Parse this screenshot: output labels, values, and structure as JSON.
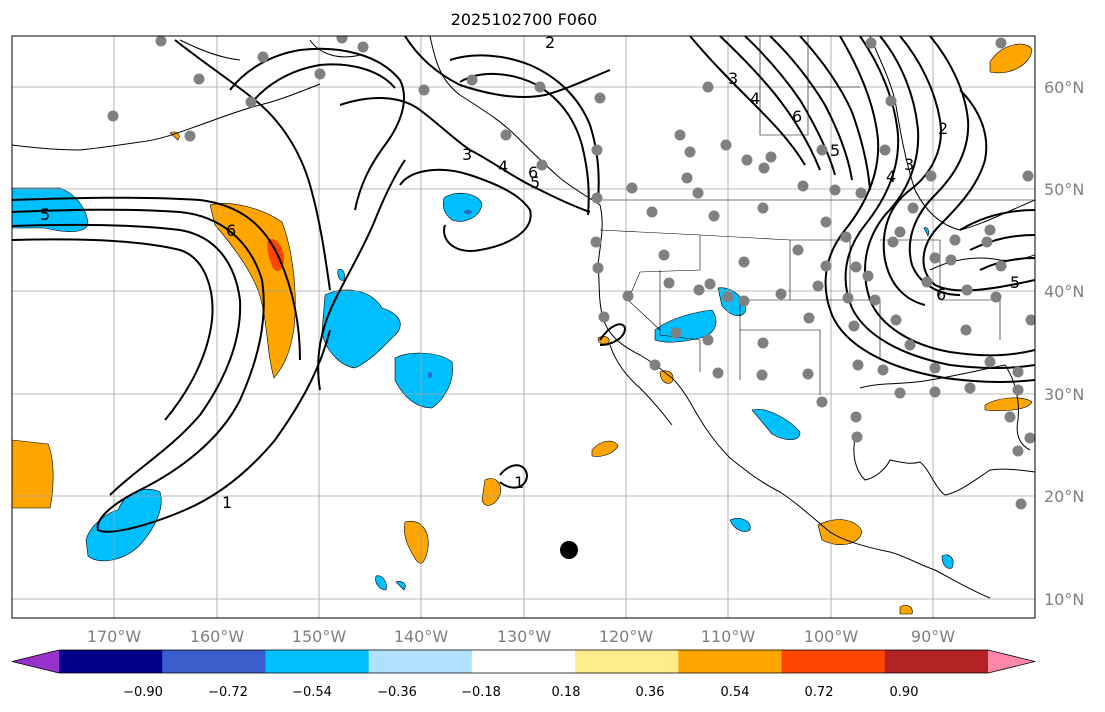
{
  "title": "2025102700 F060",
  "map": {
    "lon_range": [
      -180,
      -80
    ],
    "lat_range": [
      8,
      65
    ],
    "lat_labels": [
      "60°N",
      "50°N",
      "40°N",
      "30°N",
      "20°N",
      "10°N"
    ],
    "lon_labels": [
      "170°W",
      "160°W",
      "150°W",
      "140°W",
      "130°W",
      "120°W",
      "110°W",
      "100°W",
      "90°W"
    ],
    "gridlines": "on",
    "contour_labels": [
      "5",
      "6",
      "3",
      "4",
      "5",
      "6",
      "2",
      "3",
      "4",
      "6",
      "5",
      "6",
      "1",
      "1",
      "2",
      "3",
      "4",
      "5"
    ],
    "station_marker": {
      "lon": -125.7,
      "lat": 14.7,
      "label": ""
    }
  },
  "colorbar": {
    "ticks": [
      "−0.90",
      "−0.72",
      "−0.54",
      "−0.36",
      "−0.18",
      "0.18",
      "0.36",
      "0.54",
      "0.72",
      "0.90"
    ],
    "colors": [
      "#9932cc",
      "#00008b",
      "#3a5fcd",
      "#00bfff",
      "#b0e2ff",
      "#ffffff",
      "#ffec8b",
      "#ffa500",
      "#ff4500",
      "#b22222",
      "#ff88aa"
    ],
    "extend": "both"
  }
}
